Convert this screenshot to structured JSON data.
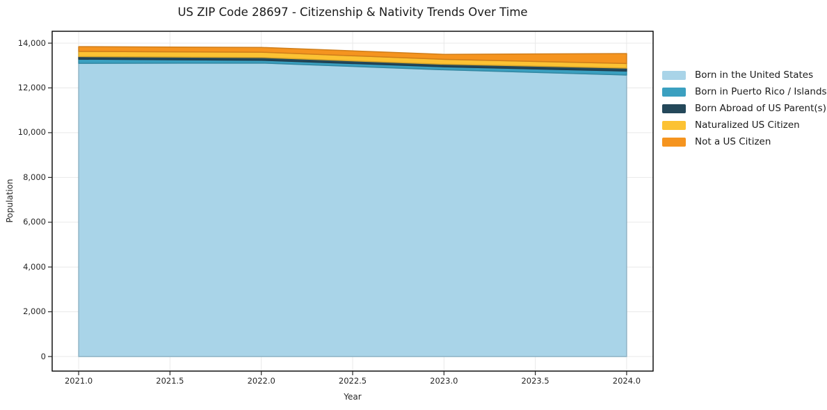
{
  "chart_data": {
    "type": "area",
    "stacked": true,
    "title": "US ZIP Code 28697 - Citizenship & Nativity Trends Over Time",
    "xlabel": "Year",
    "ylabel": "Population",
    "x": [
      2021.0,
      2022.0,
      2023.0,
      2024.0
    ],
    "series": [
      {
        "name": "Born in the United States",
        "color": "#a9d4e8",
        "values": [
          13100,
          13110,
          12810,
          12575
        ]
      },
      {
        "name": "Born in Puerto Rico / Islands",
        "color": "#3ba0c0",
        "values": [
          185,
          125,
          135,
          175
        ]
      },
      {
        "name": "Born Abroad of US Parent(s)",
        "color": "#24485a",
        "values": [
          115,
          125,
          115,
          135
        ]
      },
      {
        "name": "Naturalized US Citizen",
        "color": "#fcc233",
        "values": [
          230,
          235,
          215,
          205
        ]
      },
      {
        "name": "Not a US Citizen",
        "color": "#f5941f",
        "values": [
          215,
          215,
          225,
          445
        ]
      }
    ],
    "x_ticks": [
      {
        "value": 2021.0,
        "label": "2021.0"
      },
      {
        "value": 2021.5,
        "label": "2021.5"
      },
      {
        "value": 2022.0,
        "label": "2022.0"
      },
      {
        "value": 2022.5,
        "label": "2022.5"
      },
      {
        "value": 2023.0,
        "label": "2023.0"
      },
      {
        "value": 2023.5,
        "label": "2023.5"
      },
      {
        "value": 2024.0,
        "label": "2024.0"
      }
    ],
    "y_ticks": [
      {
        "value": 0,
        "label": "0"
      },
      {
        "value": 2000,
        "label": "2,000"
      },
      {
        "value": 4000,
        "label": "4,000"
      },
      {
        "value": 6000,
        "label": "6,000"
      },
      {
        "value": 8000,
        "label": "8,000"
      },
      {
        "value": 10000,
        "label": "10,000"
      },
      {
        "value": 12000,
        "label": "12,000"
      },
      {
        "value": 14000,
        "label": "14,000"
      }
    ],
    "xlim": [
      2020.855,
      2024.145
    ],
    "ylim": [
      -650,
      14530
    ],
    "grid": true,
    "grid_color": "#e9e9e9",
    "frame_color": "#000000",
    "legend_position": "right"
  }
}
